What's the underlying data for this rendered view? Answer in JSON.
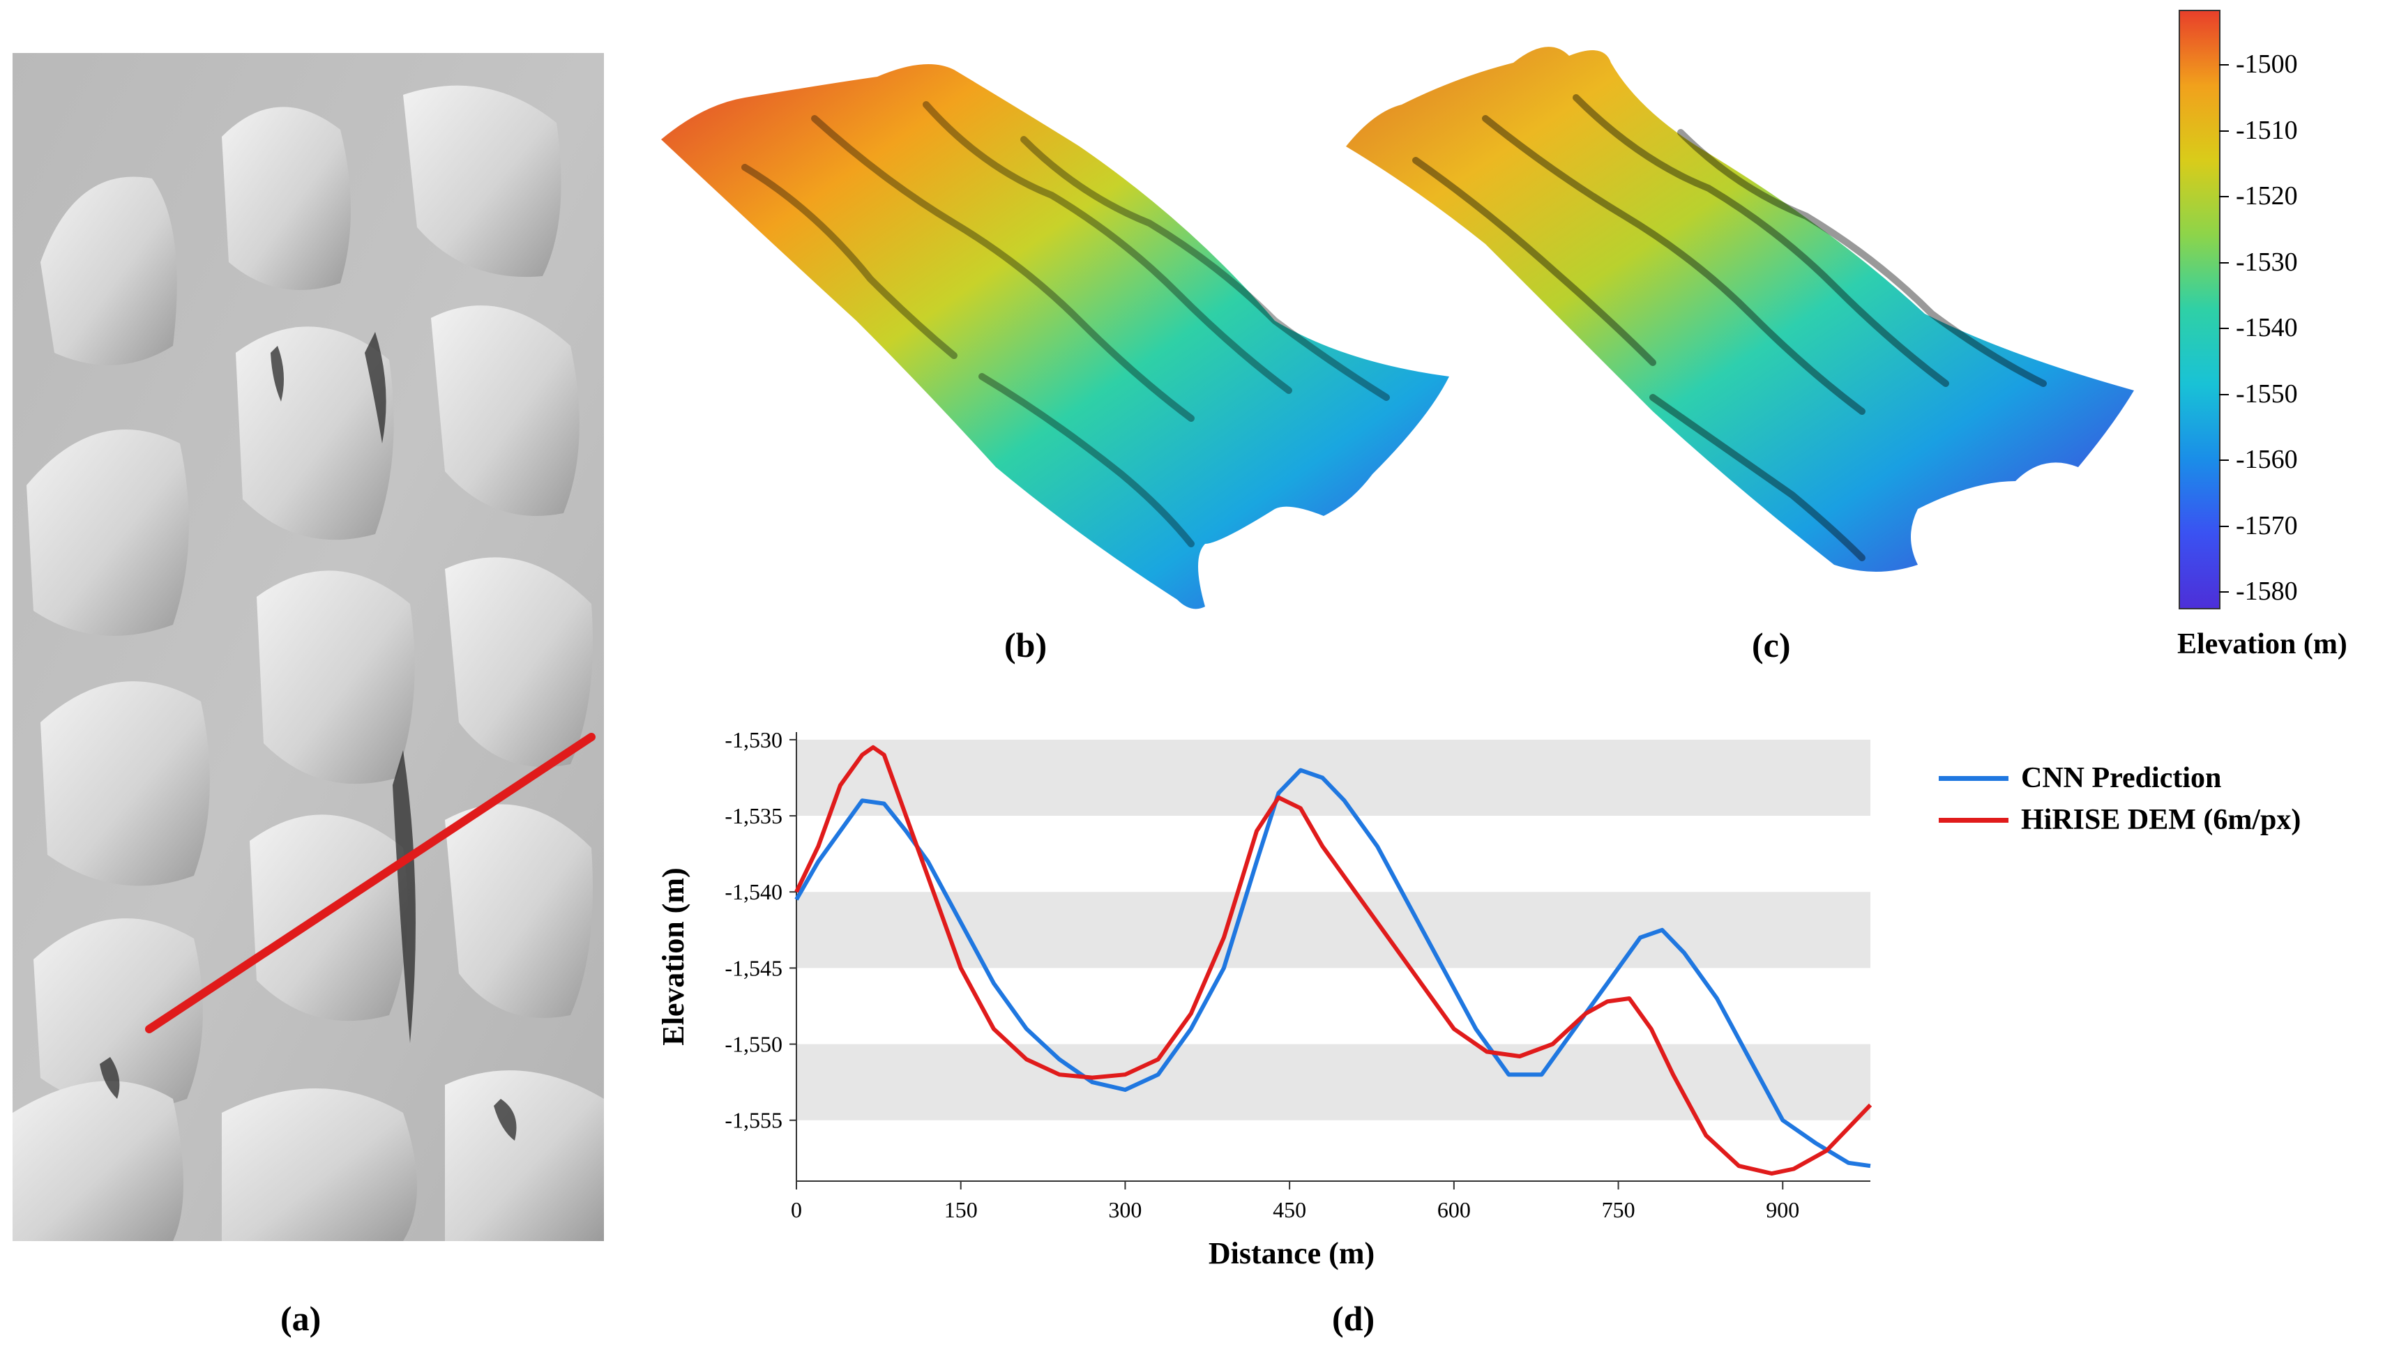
{
  "panels": {
    "a": "(a)",
    "b": "(b)",
    "c": "(c)",
    "d": "(d)"
  },
  "colorbar": {
    "title": "Elevation (m)",
    "ticks": [
      "-1500",
      "-1510",
      "-1520",
      "-1530",
      "-1540",
      "-1550",
      "-1560",
      "-1570",
      "-1580"
    ],
    "colors": [
      "#e8402a",
      "#f1a11c",
      "#d9cc1a",
      "#8dd44a",
      "#2fd0a6",
      "#19c2d6",
      "#1a8ee8",
      "#3a52f2",
      "#4d2fd8"
    ]
  },
  "map_panel": {
    "profile_color": "#e01b1b"
  },
  "chart_data": {
    "type": "line",
    "xlabel": "Distance (m)",
    "ylabel": "Elevation (m)",
    "xlim": [
      0,
      980
    ],
    "ylim": [
      -1559,
      -1529.5
    ],
    "xticks": [
      0,
      150,
      300,
      450,
      600,
      750,
      900
    ],
    "xtick_labels": [
      "0",
      "150",
      "300",
      "450",
      "600",
      "750",
      "900"
    ],
    "yticks": [
      -1530,
      -1535,
      -1540,
      -1545,
      -1550,
      -1555
    ],
    "ytick_labels": [
      "-1,530",
      "-1,535",
      "-1,540",
      "-1,545",
      "-1,550",
      "-1,555"
    ],
    "legend": {
      "position": "right"
    },
    "series": [
      {
        "name": "CNN Prediction",
        "color": "#1f77e0",
        "x": [
          0,
          20,
          40,
          60,
          80,
          100,
          120,
          150,
          180,
          210,
          240,
          270,
          300,
          330,
          360,
          390,
          420,
          440,
          460,
          480,
          500,
          530,
          560,
          590,
          620,
          650,
          680,
          710,
          740,
          770,
          790,
          810,
          840,
          870,
          900,
          930,
          960,
          980
        ],
        "y": [
          -1540.5,
          -1538,
          -1536,
          -1534,
          -1534.2,
          -1536,
          -1538,
          -1542,
          -1546,
          -1549,
          -1551,
          -1552.5,
          -1553,
          -1552,
          -1549,
          -1545,
          -1538,
          -1533.5,
          -1532,
          -1532.5,
          -1534,
          -1537,
          -1541,
          -1545,
          -1549,
          -1552,
          -1552,
          -1549,
          -1546,
          -1543,
          -1542.5,
          -1544,
          -1547,
          -1551,
          -1555,
          -1556.5,
          -1557.8,
          -1558
        ]
      },
      {
        "name": "HiRISE DEM (6m/px)",
        "color": "#e01b1b",
        "x": [
          0,
          20,
          40,
          60,
          70,
          80,
          100,
          120,
          150,
          180,
          210,
          240,
          270,
          300,
          330,
          360,
          390,
          420,
          440,
          460,
          480,
          510,
          540,
          570,
          600,
          630,
          660,
          690,
          720,
          740,
          760,
          780,
          800,
          830,
          860,
          890,
          910,
          940,
          960,
          980
        ],
        "y": [
          -1540,
          -1537,
          -1533,
          -1531,
          -1530.5,
          -1531,
          -1535,
          -1539,
          -1545,
          -1549,
          -1551,
          -1552,
          -1552.2,
          -1552,
          -1551,
          -1548,
          -1543,
          -1536,
          -1533.8,
          -1534.5,
          -1537,
          -1540,
          -1543,
          -1546,
          -1549,
          -1550.5,
          -1550.8,
          -1550,
          -1548,
          -1547.2,
          -1547,
          -1549,
          -1552,
          -1556,
          -1558,
          -1558.5,
          -1558.2,
          -1557,
          -1555.5,
          -1554
        ]
      }
    ]
  }
}
